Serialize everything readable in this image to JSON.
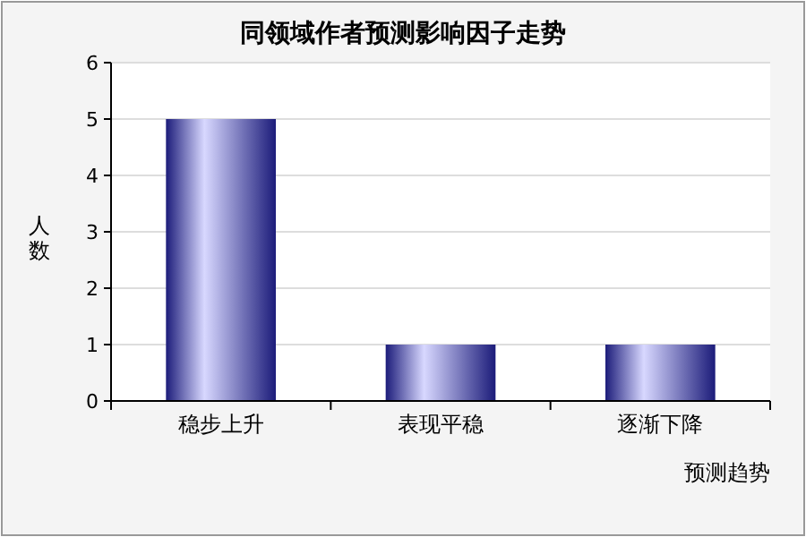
{
  "chart_data": {
    "type": "bar",
    "title": "同领域作者预测影响因子走势",
    "xlabel": "预测趋势",
    "ylabel": "人数",
    "categories": [
      "稳步上升",
      "表现平稳",
      "逐渐下降"
    ],
    "values": [
      5,
      1,
      1
    ],
    "color": "#1c1c7a",
    "ylim": [
      0,
      6
    ],
    "yticks": [
      0,
      1,
      2,
      3,
      4,
      5,
      6
    ],
    "grid": "y"
  }
}
